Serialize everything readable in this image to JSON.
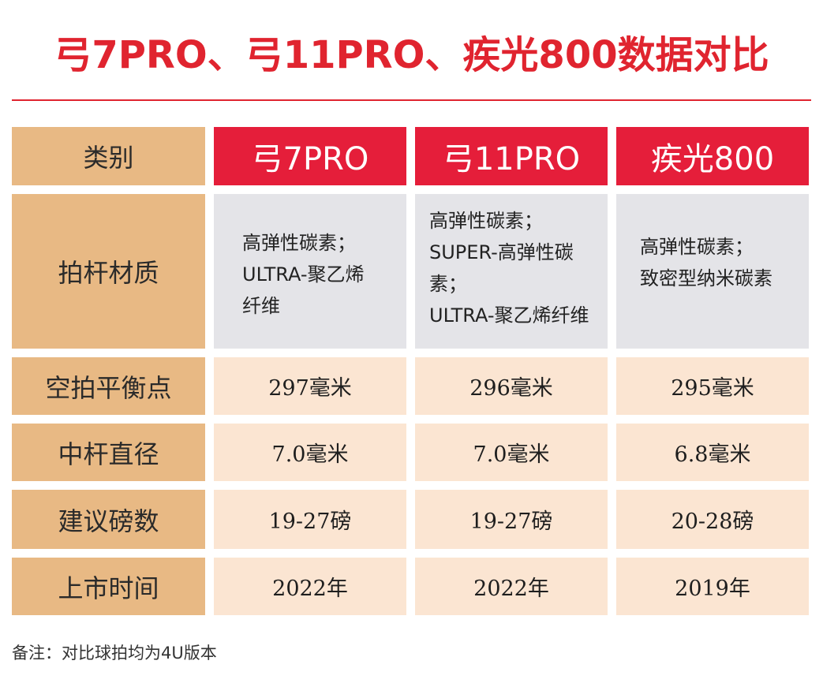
{
  "title": "弓7PRO、弓11PRO、疾光800数据对比",
  "header": {
    "category": "类别",
    "columns": [
      "弓7PRO",
      "弓11PRO",
      "疾光800"
    ]
  },
  "rows": [
    {
      "label": "拍杆材质",
      "values": [
        [
          "高弹性碳素；",
          "ULTRA-聚乙烯",
          "纤维"
        ],
        [
          "高弹性碳素；",
          "SUPER-高弹性碳素；",
          "ULTRA-聚乙烯纤维"
        ],
        [
          "高弹性碳素；",
          "致密型纳米碳素"
        ]
      ]
    },
    {
      "label": "空拍平衡点",
      "values": [
        "297毫米",
        "296毫米",
        "295毫米"
      ]
    },
    {
      "label": "中杆直径",
      "values": [
        "7.0毫米",
        "7.0毫米",
        "6.8毫米"
      ]
    },
    {
      "label": "建议磅数",
      "values": [
        "19-27磅",
        "19-27磅",
        "20-28磅"
      ]
    },
    {
      "label": "上市时间",
      "values": [
        "2022年",
        "2022年",
        "2019年"
      ]
    }
  ],
  "note": "备注：对比球拍均为4U版本",
  "colors": {
    "accent": "#e0242f",
    "header_bg": "#e51e3a",
    "category_bg": "#e8b984",
    "material_bg": "#e4e4e8",
    "value_bg": "#fbe5d2"
  }
}
